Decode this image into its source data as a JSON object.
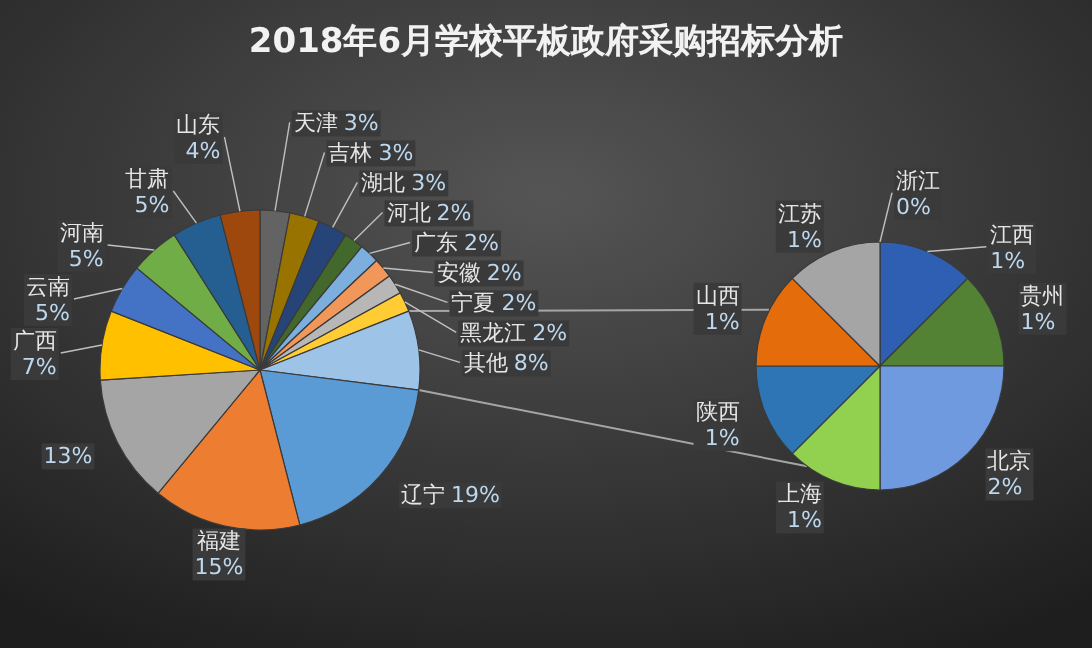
{
  "chart_data": [
    {
      "type": "pie",
      "title": "2018年6月学校平板政府采购招标分析",
      "categories": [
        "天津",
        "吉林",
        "湖北",
        "河北",
        "广东",
        "安徽",
        "宁夏",
        "黑龙江",
        "其他",
        "辽宁",
        "福建",
        null,
        "广西",
        "云南",
        "河南",
        "甘肃",
        "山东"
      ],
      "values": [
        3,
        3,
        3,
        2,
        2,
        2,
        2,
        2,
        8,
        19,
        15,
        13,
        7,
        5,
        5,
        5,
        4
      ],
      "value_labels": [
        "3%",
        "3%",
        "3%",
        "2%",
        "2%",
        "2%",
        "2%",
        "2%",
        "8%",
        "19%",
        "15%",
        "13%",
        "7%",
        "5%",
        "5%",
        "5%",
        "4%"
      ],
      "colors": [
        "#636363",
        "#997300",
        "#264478",
        "#43682b",
        "#7cafdd",
        "#f1975a",
        "#b7b7b7",
        "#ffcd33",
        "#9dc3e6",
        "#5b9bd5",
        "#ed7d31",
        "#a5a5a5",
        "#ffc000",
        "#4472c4",
        "#70ad47",
        "#255e91",
        "#9e480e"
      ]
    },
    {
      "type": "pie",
      "categories": [
        "浙江",
        "江西",
        "贵州",
        "北京",
        "上海",
        "陕西",
        "山西",
        "江苏"
      ],
      "values": [
        0,
        1,
        1,
        2,
        1,
        1,
        1,
        1
      ],
      "value_labels": [
        "0%",
        "1%",
        "1%",
        "2%",
        "1%",
        "1%",
        "1%",
        "1%"
      ],
      "colors": [
        "#d9a000",
        "#2f5fb3",
        "#548235",
        "#6f9ae0",
        "#92d050",
        "#2e75b6",
        "#e46c0a",
        "#a5a5a5"
      ]
    }
  ]
}
